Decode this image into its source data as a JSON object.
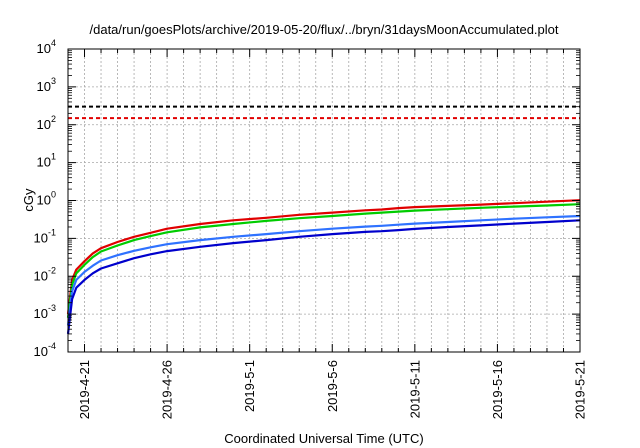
{
  "chart_data": {
    "type": "line",
    "title": "/data/run/goesPlots/archive/2019-05-20/flux/../bryn/31daysMoonAccumulated.plot",
    "xlabel": "Coordinated Universal Time (UTC)",
    "ylabel": "cGy",
    "y_scale": "log",
    "ylim": [
      0.0001,
      10000
    ],
    "y_ticks": [
      {
        "value": 0.0001,
        "base": "10",
        "exp": "-4"
      },
      {
        "value": 0.001,
        "base": "10",
        "exp": "-3"
      },
      {
        "value": 0.01,
        "base": "10",
        "exp": "-2"
      },
      {
        "value": 0.1,
        "base": "10",
        "exp": "-1"
      },
      {
        "value": 1,
        "base": "10",
        "exp": "0"
      },
      {
        "value": 10,
        "base": "10",
        "exp": "1"
      },
      {
        "value": 100,
        "base": "10",
        "exp": "2"
      },
      {
        "value": 1000,
        "base": "10",
        "exp": "3"
      },
      {
        "value": 10000,
        "base": "10",
        "exp": "4"
      }
    ],
    "xlim": [
      "2019-04-20",
      "2019-05-21"
    ],
    "x_ticks": [
      "2019-4-21",
      "2019-4-26",
      "2019-5-1",
      "2019-5-6",
      "2019-5-11",
      "2019-5-16",
      "2019-5-21"
    ],
    "x_tick_dates": [
      "2019-04-21",
      "2019-04-26",
      "2019-05-01",
      "2019-05-06",
      "2019-05-11",
      "2019-05-16",
      "2019-05-21"
    ],
    "grid": true,
    "thresholds": [
      {
        "value": 300,
        "color": "#000000",
        "style": "dashed"
      },
      {
        "value": 150,
        "color": "#e00000",
        "style": "dashed"
      }
    ],
    "series": [
      {
        "color": "#e00000",
        "x": [
          "2019-04-20",
          "2019-04-20T06:00",
          "2019-04-20T12:00",
          "2019-04-21",
          "2019-04-21T12:00",
          "2019-04-22",
          "2019-04-23",
          "2019-04-24",
          "2019-04-25",
          "2019-04-26",
          "2019-04-28",
          "2019-04-30",
          "2019-05-02",
          "2019-05-04",
          "2019-05-06",
          "2019-05-08",
          "2019-05-09",
          "2019-05-10",
          "2019-05-11",
          "2019-05-13",
          "2019-05-15",
          "2019-05-17",
          "2019-05-19",
          "2019-05-21"
        ],
        "y": [
          0.001,
          0.008,
          0.015,
          0.025,
          0.04,
          0.055,
          0.08,
          0.11,
          0.14,
          0.18,
          0.24,
          0.3,
          0.35,
          0.42,
          0.48,
          0.55,
          0.58,
          0.63,
          0.67,
          0.72,
          0.78,
          0.85,
          0.93,
          1.02
        ]
      },
      {
        "color": "#00cc00",
        "x": [
          "2019-04-20",
          "2019-04-20T06:00",
          "2019-04-20T12:00",
          "2019-04-21",
          "2019-04-21T12:00",
          "2019-04-22",
          "2019-04-23",
          "2019-04-24",
          "2019-04-25",
          "2019-04-26",
          "2019-04-28",
          "2019-04-30",
          "2019-05-02",
          "2019-05-04",
          "2019-05-06",
          "2019-05-08",
          "2019-05-09",
          "2019-05-10",
          "2019-05-11",
          "2019-05-13",
          "2019-05-15",
          "2019-05-17",
          "2019-05-19",
          "2019-05-21"
        ],
        "y": [
          0.0008,
          0.006,
          0.012,
          0.02,
          0.032,
          0.045,
          0.065,
          0.09,
          0.115,
          0.145,
          0.195,
          0.24,
          0.29,
          0.34,
          0.39,
          0.45,
          0.48,
          0.51,
          0.54,
          0.59,
          0.64,
          0.69,
          0.74,
          0.8
        ]
      },
      {
        "color": "#2f72ff",
        "x": [
          "2019-04-20",
          "2019-04-20T06:00",
          "2019-04-20T12:00",
          "2019-04-21",
          "2019-04-21T12:00",
          "2019-04-22",
          "2019-04-23",
          "2019-04-24",
          "2019-04-25",
          "2019-04-26",
          "2019-04-28",
          "2019-04-30",
          "2019-05-02",
          "2019-05-04",
          "2019-05-06",
          "2019-05-08",
          "2019-05-09",
          "2019-05-10",
          "2019-05-11",
          "2019-05-13",
          "2019-05-15",
          "2019-05-17",
          "2019-05-19",
          "2019-05-21"
        ],
        "y": [
          0.0005,
          0.004,
          0.008,
          0.013,
          0.019,
          0.026,
          0.036,
          0.047,
          0.058,
          0.07,
          0.09,
          0.11,
          0.13,
          0.155,
          0.18,
          0.205,
          0.215,
          0.23,
          0.245,
          0.27,
          0.3,
          0.33,
          0.36,
          0.39
        ]
      },
      {
        "color": "#0000cc",
        "x": [
          "2019-04-20",
          "2019-04-20T06:00",
          "2019-04-20T12:00",
          "2019-04-21",
          "2019-04-21T12:00",
          "2019-04-22",
          "2019-04-23",
          "2019-04-24",
          "2019-04-25",
          "2019-04-26",
          "2019-04-28",
          "2019-04-30",
          "2019-05-02",
          "2019-05-04",
          "2019-05-06",
          "2019-05-08",
          "2019-05-09",
          "2019-05-10",
          "2019-05-11",
          "2019-05-13",
          "2019-05-15",
          "2019-05-17",
          "2019-05-19",
          "2019-05-21"
        ],
        "y": [
          0.0003,
          0.0025,
          0.005,
          0.008,
          0.012,
          0.016,
          0.022,
          0.03,
          0.038,
          0.046,
          0.06,
          0.075,
          0.09,
          0.11,
          0.13,
          0.148,
          0.155,
          0.165,
          0.178,
          0.2,
          0.22,
          0.245,
          0.27,
          0.3
        ]
      }
    ]
  }
}
